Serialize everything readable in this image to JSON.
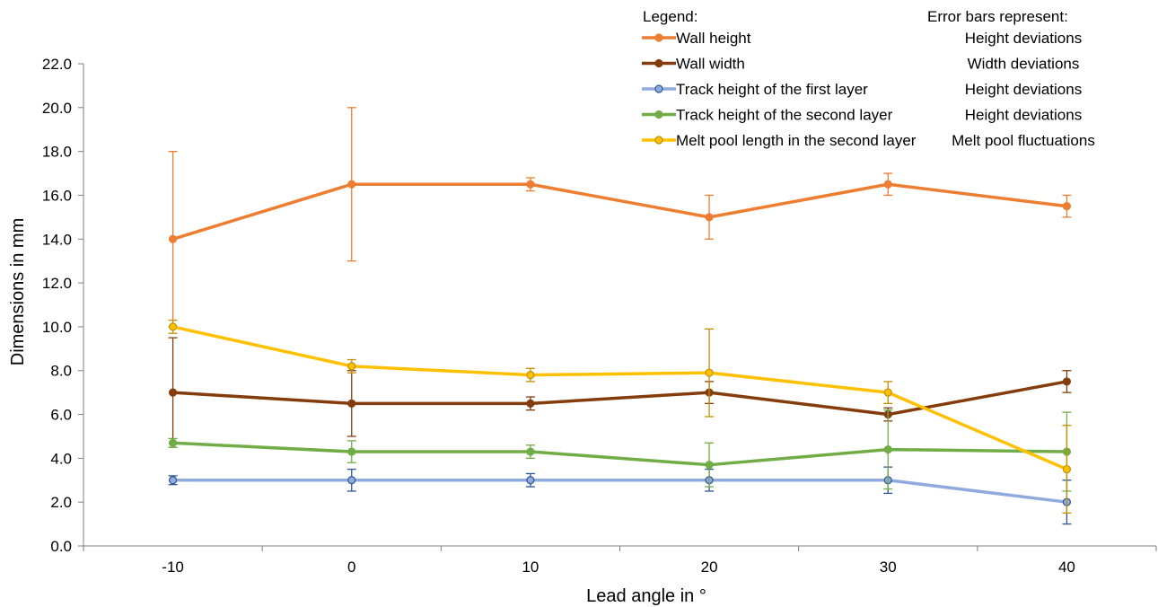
{
  "chart_data": {
    "type": "line",
    "xlabel": "Lead angle in °",
    "ylabel": "Dimensions in mm",
    "x": [
      -10,
      0,
      10,
      20,
      30,
      40
    ],
    "xlim": [
      -15,
      45
    ],
    "ylim": [
      0,
      22
    ],
    "yticks": [
      "0.0",
      "2.0",
      "4.0",
      "6.0",
      "8.0",
      "10.0",
      "12.0",
      "14.0",
      "16.0",
      "18.0",
      "20.0",
      "22.0"
    ],
    "xticks": [
      "-10",
      "0",
      "10",
      "20",
      "30",
      "40"
    ],
    "grid": false,
    "legend_title": "Legend:",
    "error_bars_title": "Error bars represent:",
    "legend_position": "top-right",
    "series": [
      {
        "name": "Wall height",
        "error_label": "Height deviations",
        "color": "#ED7D31",
        "values": [
          14.0,
          16.5,
          16.5,
          15.0,
          16.5,
          15.5
        ],
        "err_high": [
          18.0,
          20.0,
          16.8,
          16.0,
          17.0,
          16.0
        ],
        "err_low": [
          10.0,
          13.0,
          16.2,
          14.0,
          16.0,
          15.0
        ]
      },
      {
        "name": "Wall width",
        "error_label": "Width deviations",
        "color": "#843C0C",
        "values": [
          7.0,
          6.5,
          6.5,
          7.0,
          6.0,
          7.5
        ],
        "err_high": [
          9.5,
          8.0,
          6.8,
          7.5,
          6.3,
          8.0
        ],
        "err_low": [
          4.5,
          5.0,
          6.2,
          6.5,
          5.7,
          7.0
        ]
      },
      {
        "name": "Track height of the first layer",
        "error_label": "Height deviations",
        "color": "#8FAADC",
        "marker_edge": "#2F5597",
        "values": [
          3.0,
          3.0,
          3.0,
          3.0,
          3.0,
          2.0
        ],
        "err_high": [
          3.2,
          3.5,
          3.3,
          3.5,
          3.6,
          3.0
        ],
        "err_low": [
          2.8,
          2.5,
          2.7,
          2.5,
          2.4,
          1.0
        ]
      },
      {
        "name": "Track height of the second layer",
        "error_label": "Height deviations",
        "color": "#70AD47",
        "values": [
          4.7,
          4.3,
          4.3,
          3.7,
          4.4,
          4.3
        ],
        "err_high": [
          4.9,
          4.8,
          4.6,
          4.7,
          6.2,
          6.1
        ],
        "err_low": [
          4.5,
          3.8,
          4.0,
          2.7,
          2.6,
          2.5
        ]
      },
      {
        "name": "Melt pool length in the second layer",
        "error_label": "Melt pool fluctuations",
        "color": "#FFC000",
        "marker_edge": "#BF9000",
        "values": [
          10.0,
          8.2,
          7.8,
          7.9,
          7.0,
          3.5
        ],
        "err_high": [
          10.3,
          8.5,
          8.1,
          9.9,
          7.5,
          5.5
        ],
        "err_low": [
          9.7,
          7.9,
          7.5,
          5.9,
          6.5,
          1.5
        ]
      }
    ]
  }
}
